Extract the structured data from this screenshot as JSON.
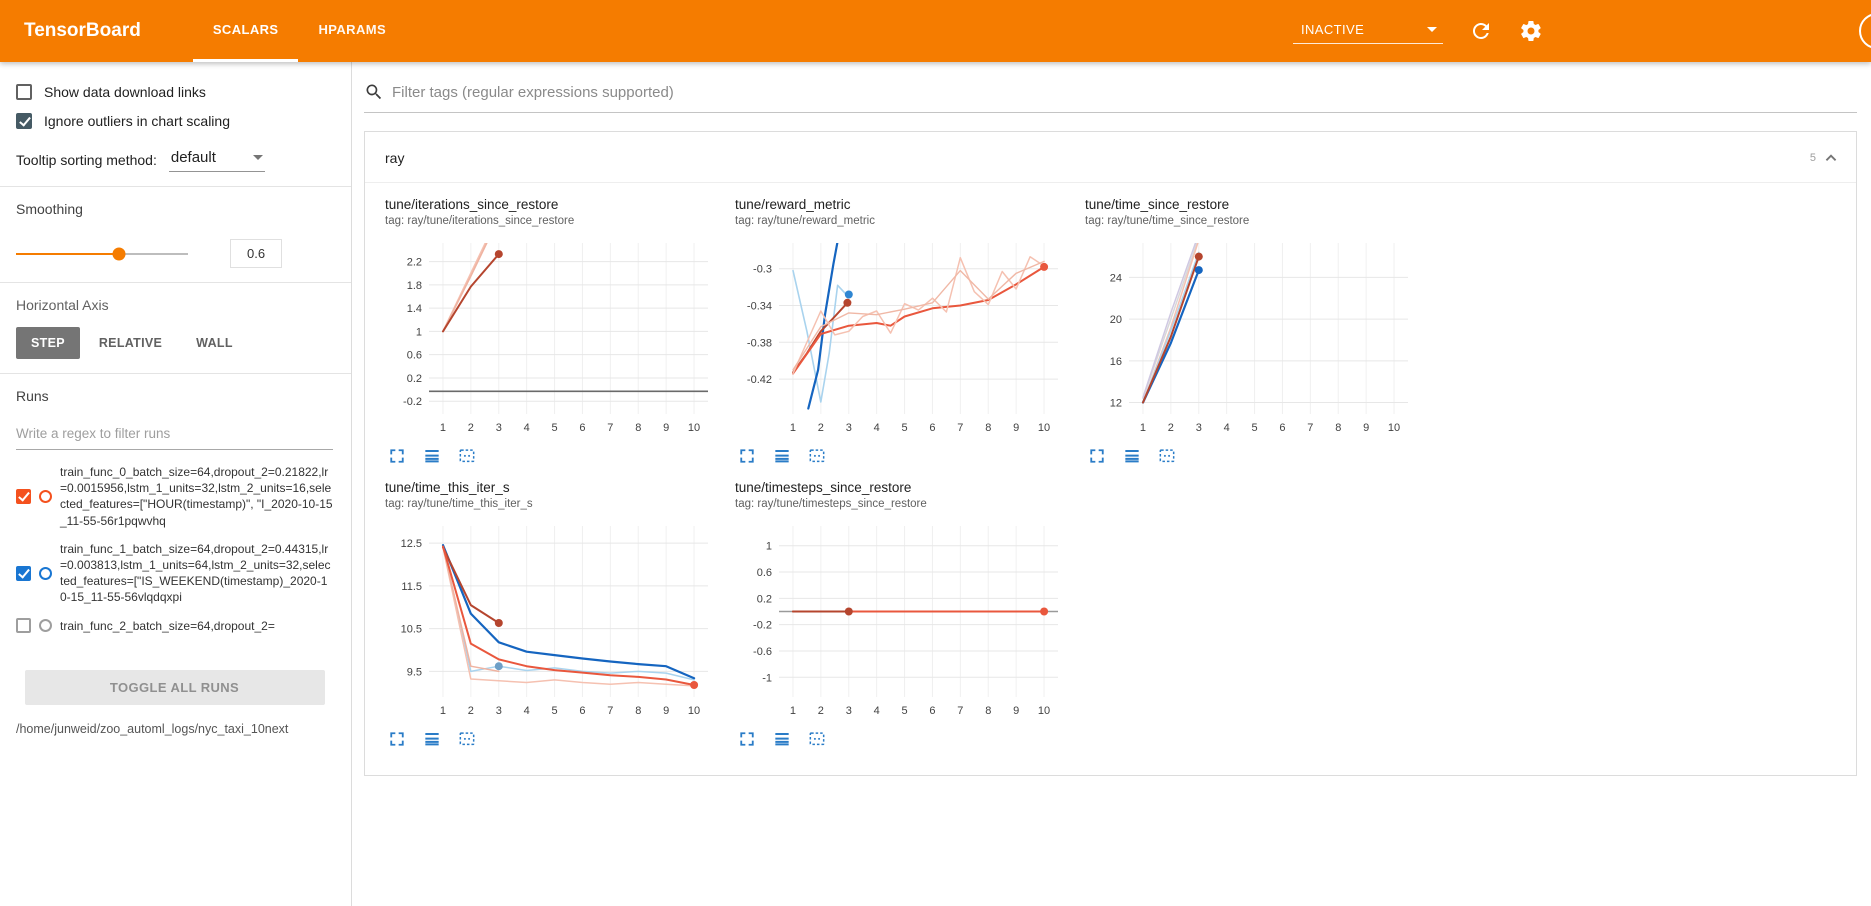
{
  "header": {
    "title": "TensorBoard",
    "tabs": [
      {
        "label": "SCALARS",
        "active": true
      },
      {
        "label": "HPARAMS",
        "active": false
      }
    ],
    "status": "INACTIVE"
  },
  "sidebar": {
    "show_download": "Show data download links",
    "ignore_outliers": "Ignore outliers in chart scaling",
    "tooltip_label": "Tooltip sorting method:",
    "tooltip_value": "default",
    "smoothing_label": "Smoothing",
    "smoothing_value": "0.6",
    "haxis_label": "Horizontal Axis",
    "haxis_options": [
      "STEP",
      "RELATIVE",
      "WALL"
    ],
    "runs_label": "Runs",
    "runs_placeholder": "Write a regex to filter runs",
    "runs": [
      {
        "name": "train_func_0_batch_size=64,dropout_2=0.21822,lr=0.0015956,lstm_1_units=32,lstm_2_units=16,selected_features=[\"HOUR(timestamp)\", \"I_2020-10-15_11-55-56r1pqwvhq",
        "color": "#f4511e",
        "checked": true
      },
      {
        "name": "train_func_1_batch_size=64,dropout_2=0.44315,lr=0.003813,lstm_1_units=64,lstm_2_units=32,selected_features=[\"IS_WEEKEND(timestamp)_2020-10-15_11-55-56vlqdqxpi",
        "color": "#1976d2",
        "checked": true
      },
      {
        "name": "train_func_2_batch_size=64,dropout_2=",
        "color": "#9e9e9e",
        "checked": false
      }
    ],
    "toggle_all": "TOGGLE ALL RUNS",
    "log_path": "/home/junweid/zoo_automl_logs/nyc_taxi_10next"
  },
  "main": {
    "filter_placeholder": "Filter tags (regular expressions supported)",
    "group": {
      "name": "ray",
      "count": "5"
    }
  },
  "icons": {
    "search": "magnifier",
    "refresh": "circular-arrow",
    "settings": "gear",
    "help": "circle",
    "status_caret": "caret-down",
    "collapse": "chevron-up",
    "expand_chart": "corner-brackets",
    "log_scale": "horizontal-lines",
    "fit_domain": "dashed-box"
  },
  "colors": {
    "accent": "#f57c00",
    "run0": "#f4511e",
    "run1": "#1976d2",
    "chart_icon_blue": "#2a7cc7"
  },
  "chart_data": [
    {
      "type": "line",
      "title": "tune/iterations_since_restore",
      "tag": "tag: ray/tune/iterations_since_restore",
      "xlim": [
        0.5,
        10.5
      ],
      "ylim": [
        -0.42,
        2.52
      ],
      "xticks": [
        1,
        2,
        3,
        4,
        5,
        6,
        7,
        8,
        9,
        10
      ],
      "yticks": [
        -0.2,
        0.2,
        0.6,
        1,
        1.4,
        1.8,
        2.2
      ],
      "series": [
        {
          "name": "run0-raw",
          "color": "#f5c1b1",
          "w": 1.6,
          "points": [
            [
              1,
              1
            ],
            [
              2,
              2
            ],
            [
              3,
              3
            ]
          ]
        },
        {
          "name": "run1-raw",
          "color": "#efb3a1",
          "w": 1.6,
          "points": [
            [
              1,
              1
            ],
            [
              2,
              1.95
            ],
            [
              3,
              2.95
            ]
          ]
        },
        {
          "name": "run0-smoothed",
          "color": "#b5452e",
          "w": 2,
          "points": [
            [
              1,
              1
            ],
            [
              2,
              1.77
            ],
            [
              3,
              2.33
            ]
          ],
          "dot": [
            3,
            2.33
          ]
        },
        {
          "name": "flat-zero",
          "color": "#6a6a6a",
          "w": 1.6,
          "points": [
            [
              0.5,
              -0.03
            ],
            [
              10.5,
              -0.03
            ]
          ]
        }
      ]
    },
    {
      "type": "line",
      "title": "tune/reward_metric",
      "tag": "tag: ray/tune/reward_metric",
      "xlim": [
        0.5,
        10.5
      ],
      "ylim": [
        -0.458,
        -0.272
      ],
      "xticks": [
        1,
        2,
        3,
        4,
        5,
        6,
        7,
        8,
        9,
        10
      ],
      "yticks": [
        -0.42,
        -0.38,
        -0.34,
        -0.3
      ],
      "series": [
        {
          "name": "run1-raw",
          "color": "#a9d3ee",
          "w": 1.6,
          "points": [
            [
              1,
              -0.302
            ],
            [
              1.5,
              -0.368
            ],
            [
              2,
              -0.445
            ],
            [
              2.3,
              -0.392
            ],
            [
              2.6,
              -0.318
            ],
            [
              3,
              -0.331
            ]
          ]
        },
        {
          "name": "run1-smoothed",
          "color": "#1565c0",
          "w": 2.2,
          "points": [
            [
              1.55,
              -0.452
            ],
            [
              1.9,
              -0.41
            ],
            [
              2.15,
              -0.35
            ],
            [
              2.45,
              -0.295
            ],
            [
              2.65,
              -0.262
            ]
          ]
        },
        {
          "name": "run1-end",
          "color": "#2f86d2",
          "points": [
            [
              3,
              -0.328
            ]
          ],
          "dot": [
            3,
            -0.328
          ]
        },
        {
          "name": "run0-smoothed",
          "color": "#b5452e",
          "w": 2,
          "points": [
            [
              1,
              -0.413
            ],
            [
              1.5,
              -0.392
            ],
            [
              2,
              -0.368
            ],
            [
              2.5,
              -0.352
            ],
            [
              2.95,
              -0.337
            ]
          ],
          "dot": [
            2.95,
            -0.337
          ]
        },
        {
          "name": "run2-smoothed",
          "color": "#e9573d",
          "w": 2,
          "points": [
            [
              1,
              -0.414
            ],
            [
              2,
              -0.371
            ],
            [
              3,
              -0.362
            ],
            [
              4,
              -0.359
            ],
            [
              4.5,
              -0.362
            ],
            [
              5,
              -0.352
            ],
            [
              6,
              -0.343
            ],
            [
              7,
              -0.34
            ],
            [
              8,
              -0.334
            ],
            [
              9,
              -0.317
            ],
            [
              10,
              -0.298
            ]
          ],
          "dot": [
            10,
            -0.298
          ]
        },
        {
          "name": "run2-raw",
          "color": "#f5c1b1",
          "w": 1.5,
          "points": [
            [
              1,
              -0.414
            ],
            [
              2,
              -0.346
            ],
            [
              2.5,
              -0.372
            ],
            [
              3,
              -0.368
            ],
            [
              3.5,
              -0.352
            ],
            [
              4,
              -0.346
            ],
            [
              4.5,
              -0.37
            ],
            [
              5,
              -0.338
            ],
            [
              5.5,
              -0.345
            ],
            [
              6,
              -0.332
            ],
            [
              6.5,
              -0.347
            ],
            [
              7,
              -0.288
            ],
            [
              7.5,
              -0.325
            ],
            [
              8,
              -0.339
            ],
            [
              8.5,
              -0.303
            ],
            [
              9,
              -0.322
            ],
            [
              9.5,
              -0.287
            ],
            [
              10,
              -0.297
            ]
          ]
        },
        {
          "name": "run0-raw",
          "color": "#f0b8a6",
          "w": 1.4,
          "points": [
            [
              1,
              -0.41
            ],
            [
              2,
              -0.363
            ],
            [
              3,
              -0.348
            ],
            [
              4,
              -0.35
            ],
            [
              5,
              -0.344
            ],
            [
              6,
              -0.337
            ],
            [
              7,
              -0.302
            ],
            [
              8,
              -0.333
            ],
            [
              9,
              -0.305
            ],
            [
              10,
              -0.292
            ]
          ]
        }
      ]
    },
    {
      "type": "line",
      "title": "tune/time_since_restore",
      "tag": "tag: ray/tune/time_since_restore",
      "xlim": [
        0.5,
        10.5
      ],
      "ylim": [
        10.9,
        27.3
      ],
      "xticks": [
        1,
        2,
        3,
        4,
        5,
        6,
        7,
        8,
        9,
        10
      ],
      "yticks": [
        12,
        16,
        20,
        24
      ],
      "series": [
        {
          "name": "raw-gray",
          "color": "#d8d8d8",
          "w": 1.5,
          "points": [
            [
              1,
              12.4
            ],
            [
              2,
              20
            ],
            [
              3,
              27.8
            ]
          ]
        },
        {
          "name": "raw-lavender",
          "color": "#cfc8e2",
          "w": 1.5,
          "points": [
            [
              1,
              12.5
            ],
            [
              2,
              20.6
            ],
            [
              3,
              28.2
            ]
          ]
        },
        {
          "name": "run0-raw",
          "color": "#f5c1b1",
          "w": 1.5,
          "points": [
            [
              1,
              12
            ],
            [
              2,
              19.2
            ],
            [
              3,
              27.6
            ]
          ]
        },
        {
          "name": "run1-raw",
          "color": "#a9d3ee",
          "w": 1.5,
          "points": [
            [
              1,
              12
            ],
            [
              2,
              18.9
            ],
            [
              3,
              26.4
            ]
          ]
        },
        {
          "name": "run1-smoothed",
          "color": "#1565c0",
          "w": 2.2,
          "points": [
            [
              1,
              12
            ],
            [
              2,
              17.7
            ],
            [
              3,
              24.7
            ]
          ],
          "dot": [
            3,
            24.7
          ]
        },
        {
          "name": "run0-smoothed",
          "color": "#b5452e",
          "w": 2,
          "points": [
            [
              1,
              12
            ],
            [
              2,
              18.3
            ],
            [
              3,
              26
            ]
          ],
          "dot": [
            3,
            26
          ]
        }
      ]
    },
    {
      "type": "line",
      "title": "tune/time_this_iter_s",
      "tag": "tag: ray/tune/time_this_iter_s",
      "xlim": [
        0.5,
        10.5
      ],
      "ylim": [
        8.9,
        12.9
      ],
      "xticks": [
        1,
        2,
        3,
        4,
        5,
        6,
        7,
        8,
        9,
        10
      ],
      "yticks": [
        9.5,
        10.5,
        11.5,
        12.5
      ],
      "series": [
        {
          "name": "run1-raw",
          "color": "#a9d3ee",
          "w": 1.5,
          "points": [
            [
              1,
              12.45
            ],
            [
              2,
              9.5
            ],
            [
              3,
              9.62
            ],
            [
              4,
              9.52
            ],
            [
              5,
              9.58
            ],
            [
              6,
              9.5
            ],
            [
              7,
              9.46
            ],
            [
              8,
              9.5
            ],
            [
              9,
              9.46
            ],
            [
              10,
              9.3
            ]
          ]
        },
        {
          "name": "run2-raw",
          "color": "#f5c1b1",
          "w": 1.5,
          "points": [
            [
              1,
              12.4
            ],
            [
              2,
              9.32
            ],
            [
              3,
              9.28
            ],
            [
              4,
              9.24
            ],
            [
              5,
              9.3
            ],
            [
              6,
              9.24
            ],
            [
              7,
              9.2
            ],
            [
              8,
              9.24
            ],
            [
              9,
              9.2
            ],
            [
              10,
              9.16
            ]
          ]
        },
        {
          "name": "run0-raw",
          "color": "#efb3a1",
          "w": 1.5,
          "points": [
            [
              1,
              12.4
            ],
            [
              2,
              9.62
            ],
            [
              3,
              9.5
            ]
          ]
        },
        {
          "name": "run1-smoothed",
          "color": "#1565c0",
          "w": 2.2,
          "points": [
            [
              1,
              12.45
            ],
            [
              2,
              10.85
            ],
            [
              3,
              10.18
            ],
            [
              4,
              9.96
            ],
            [
              5,
              9.88
            ],
            [
              6,
              9.8
            ],
            [
              7,
              9.73
            ],
            [
              8,
              9.67
            ],
            [
              9,
              9.62
            ],
            [
              10,
              9.34
            ]
          ]
        },
        {
          "name": "run1-marker",
          "color": "#6e9fc7",
          "points": [
            [
              3,
              9.62
            ]
          ],
          "dot": [
            3,
            9.62
          ]
        },
        {
          "name": "run0-smoothed",
          "color": "#b5452e",
          "w": 2,
          "points": [
            [
              1,
              12.4
            ],
            [
              2,
              11.05
            ],
            [
              3,
              10.63
            ]
          ],
          "dot": [
            3,
            10.63
          ]
        },
        {
          "name": "run2-smoothed",
          "color": "#e9573d",
          "w": 2,
          "points": [
            [
              1,
              12.42
            ],
            [
              2,
              10.15
            ],
            [
              3,
              9.78
            ],
            [
              4,
              9.62
            ],
            [
              5,
              9.53
            ],
            [
              6,
              9.47
            ],
            [
              7,
              9.41
            ],
            [
              8,
              9.37
            ],
            [
              9,
              9.31
            ],
            [
              10,
              9.18
            ]
          ],
          "dot": [
            10,
            9.18
          ]
        }
      ]
    },
    {
      "type": "line",
      "title": "tune/timesteps_since_restore",
      "tag": "tag: ray/tune/timesteps_since_restore",
      "xlim": [
        0.5,
        10.5
      ],
      "ylim": [
        -1.3,
        1.3
      ],
      "xticks": [
        1,
        2,
        3,
        4,
        5,
        6,
        7,
        8,
        9,
        10
      ],
      "yticks": [
        -1,
        -0.6,
        -0.2,
        0.2,
        0.6,
        1
      ],
      "series": [
        {
          "name": "flat-gray",
          "color": "#9a9a9a",
          "w": 1.6,
          "points": [
            [
              0.5,
              0
            ],
            [
              10.5,
              0
            ]
          ]
        },
        {
          "name": "run2-smoothed",
          "color": "#e9573d",
          "w": 2,
          "points": [
            [
              1,
              0
            ],
            [
              10,
              0
            ]
          ],
          "dot": [
            10,
            0
          ]
        },
        {
          "name": "run0-smoothed",
          "color": "#b5452e",
          "w": 2,
          "points": [
            [
              1,
              0
            ],
            [
              3,
              0
            ]
          ],
          "dot": [
            3,
            0
          ]
        }
      ]
    }
  ]
}
